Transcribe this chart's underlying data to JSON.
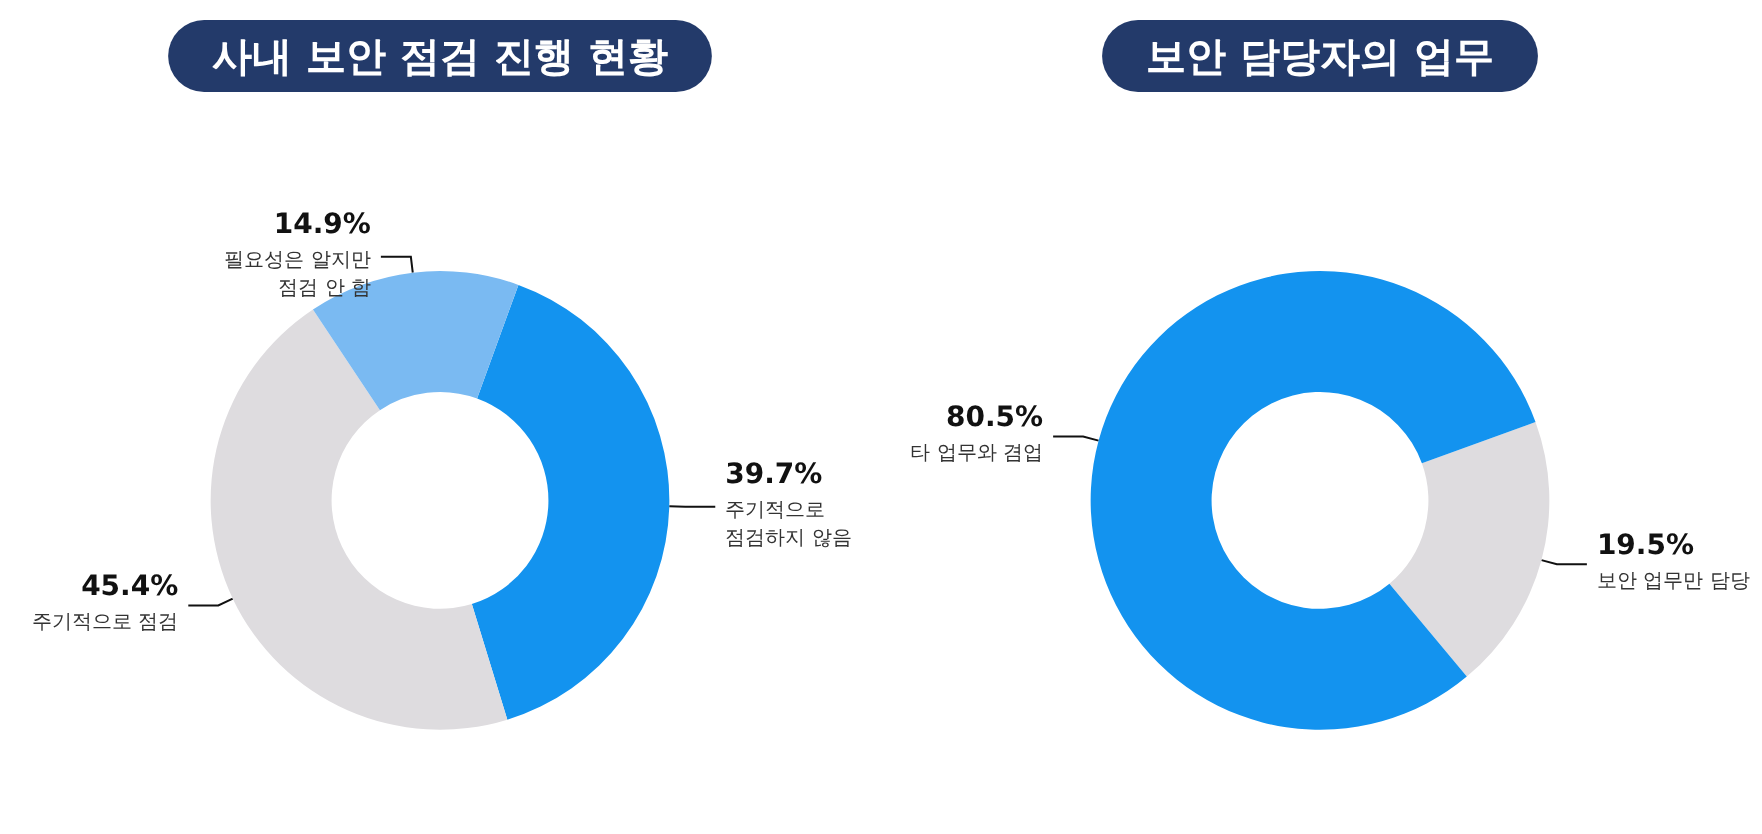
{
  "chart_data": [
    {
      "type": "donut",
      "title": "사내 보안 점검 진행 현황",
      "categories": [
        "주기적으로 점검하지 않음",
        "주기적으로 점검",
        "필요성은 알지만 점검 안 함"
      ],
      "values": [
        39.7,
        45.4,
        14.9
      ],
      "value_labels": [
        "39.7%",
        "45.4%",
        "14.9%"
      ],
      "colors": [
        "#1393ef",
        "#dedcdf",
        "#7abaf2"
      ],
      "legend": false
    },
    {
      "type": "donut",
      "title": "보안 담당자의 업무",
      "categories": [
        "보안 업무만 담당",
        "타 업무와 겸업"
      ],
      "values": [
        19.5,
        80.5
      ],
      "value_labels": [
        "19.5%",
        "80.5%"
      ],
      "colors": [
        "#dedcdf",
        "#1393ef"
      ],
      "legend": false
    }
  ]
}
